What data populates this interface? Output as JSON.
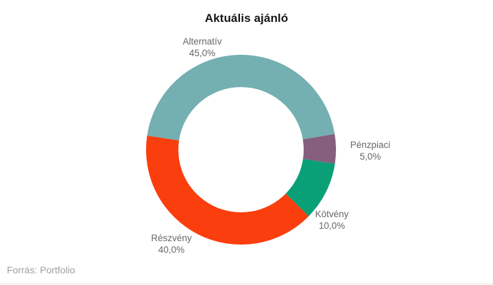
{
  "page": {
    "background": "#ffffff"
  },
  "chart_data": {
    "type": "pie",
    "subtype": "donut",
    "title": "Aktuális ajánló",
    "legend_position": "none",
    "labels": "outside, name + percent, no connector lines",
    "inner_radius_pct": 66,
    "start_angle_deg": 278.5,
    "direction": "clockwise",
    "segments": [
      {
        "name": "Alternatív",
        "value": 45.0,
        "percent_label": "45,0%",
        "color": "#74AFB1"
      },
      {
        "name": "Pénzpiaci",
        "value": 5.0,
        "percent_label": "5,0%",
        "color": "#855F7D"
      },
      {
        "name": "Kötvény",
        "value": 10.0,
        "percent_label": "10,0%",
        "color": "#09A077"
      },
      {
        "name": "Részvény",
        "value": 40.0,
        "percent_label": "40,0%",
        "color": "#FB3E0D"
      }
    ]
  },
  "footer": {
    "source_text": "Forrás: Portfolio"
  },
  "colors": {
    "title_text": "#151515",
    "segment_label_text": "#64676b",
    "source_text": "#9b9fa3",
    "divider": "#e4e4e4"
  }
}
